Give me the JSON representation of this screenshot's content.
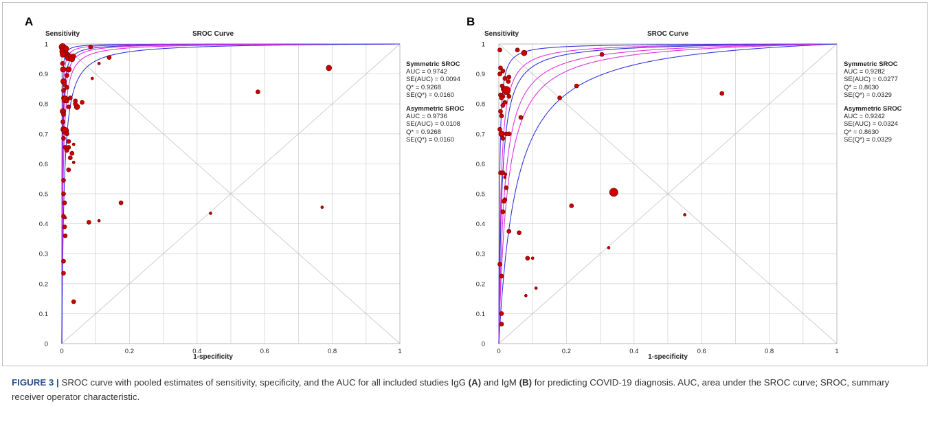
{
  "caption": {
    "label": "FIGURE 3 |",
    "part1": " SROC curve with pooled estimates of sensitivity, specificity, and the AUC for all included studies IgG ",
    "bold_a": "(A)",
    "part2": " and IgM ",
    "bold_b": "(B)",
    "part3": " for predicting COVID-19 diagnosis. AUC, area under the SROC curve; SROC, summary receiver operator characteristic."
  },
  "colors": {
    "points": "#cc0000",
    "point_edge": "#6b0000",
    "sroc_blue": "#3333dd",
    "sroc_magenta": "#dd33dd",
    "grid": "#d3d3d3"
  },
  "chart_data": [
    {
      "panel": "A",
      "type": "scatter",
      "title": "SROC Curve",
      "ylabel": "Sensitivity",
      "xlabel": "1-specificity",
      "xlim": [
        0,
        1
      ],
      "ylim": [
        0,
        1
      ],
      "x_ticks": [
        "0",
        "0.2",
        "0.4",
        "0.6",
        "0.8",
        "1"
      ],
      "y_ticks": [
        "0",
        "0.1",
        "0.2",
        "0.3",
        "0.4",
        "0.5",
        "0.6",
        "0.7",
        "0.8",
        "0.9",
        "1"
      ],
      "grid": true,
      "stats": {
        "symmetric": {
          "title": "Symmetric SROC",
          "lines": [
            "AUC = 0.9742",
            "SE(AUC) = 0.0094",
            "Q* = 0.9268",
            "SE(Q*) = 0.0160"
          ]
        },
        "asymmetric": {
          "title": "Asymmetric SROC",
          "lines": [
            "AUC = 0.9736",
            "SE(AUC) = 0.0108",
            "Q* = 0.9268",
            "SE(Q*) = 0.0160"
          ]
        }
      },
      "curves": [
        {
          "color": "blue",
          "dor": 2500
        },
        {
          "color": "magenta",
          "dor": 1300
        },
        {
          "color": "blue",
          "dor": 700
        },
        {
          "color": "magenta",
          "dor": 500
        },
        {
          "color": "magenta",
          "dor": 300
        },
        {
          "color": "blue",
          "dor": 150
        }
      ],
      "points": [
        {
          "x": 0.002,
          "y": 0.99,
          "s": 5
        },
        {
          "x": 0.004,
          "y": 0.985,
          "s": 4
        },
        {
          "x": 0.006,
          "y": 0.975,
          "s": 6
        },
        {
          "x": 0.003,
          "y": 0.965,
          "s": 4
        },
        {
          "x": 0.012,
          "y": 0.985,
          "s": 4
        },
        {
          "x": 0.018,
          "y": 0.965,
          "s": 3
        },
        {
          "x": 0.02,
          "y": 0.955,
          "s": 5
        },
        {
          "x": 0.025,
          "y": 0.96,
          "s": 3
        },
        {
          "x": 0.03,
          "y": 0.95,
          "s": 4
        },
        {
          "x": 0.035,
          "y": 0.96,
          "s": 3
        },
        {
          "x": 0.085,
          "y": 0.99,
          "s": 3
        },
        {
          "x": 0.14,
          "y": 0.955,
          "s": 3
        },
        {
          "x": 0.002,
          "y": 0.935,
          "s": 3
        },
        {
          "x": 0.004,
          "y": 0.915,
          "s": 4
        },
        {
          "x": 0.02,
          "y": 0.915,
          "s": 4
        },
        {
          "x": 0.015,
          "y": 0.895,
          "s": 3
        },
        {
          "x": 0.11,
          "y": 0.935,
          "s": 2
        },
        {
          "x": 0.005,
          "y": 0.875,
          "s": 4
        },
        {
          "x": 0.008,
          "y": 0.865,
          "s": 3
        },
        {
          "x": 0.015,
          "y": 0.855,
          "s": 3
        },
        {
          "x": 0.09,
          "y": 0.885,
          "s": 2
        },
        {
          "x": 0.005,
          "y": 0.845,
          "s": 3
        },
        {
          "x": 0.005,
          "y": 0.82,
          "s": 3
        },
        {
          "x": 0.01,
          "y": 0.815,
          "s": 5
        },
        {
          "x": 0.015,
          "y": 0.81,
          "s": 3
        },
        {
          "x": 0.025,
          "y": 0.82,
          "s": 3
        },
        {
          "x": 0.02,
          "y": 0.79,
          "s": 3
        },
        {
          "x": 0.04,
          "y": 0.81,
          "s": 3
        },
        {
          "x": 0.045,
          "y": 0.79,
          "s": 4
        },
        {
          "x": 0.04,
          "y": 0.8,
          "s": 3
        },
        {
          "x": 0.06,
          "y": 0.805,
          "s": 3
        },
        {
          "x": 0.003,
          "y": 0.775,
          "s": 4
        },
        {
          "x": 0.005,
          "y": 0.765,
          "s": 3
        },
        {
          "x": 0.003,
          "y": 0.74,
          "s": 3
        },
        {
          "x": 0.005,
          "y": 0.715,
          "s": 4
        },
        {
          "x": 0.01,
          "y": 0.71,
          "s": 5
        },
        {
          "x": 0.015,
          "y": 0.7,
          "s": 3
        },
        {
          "x": 0.005,
          "y": 0.685,
          "s": 3
        },
        {
          "x": 0.02,
          "y": 0.675,
          "s": 3
        },
        {
          "x": 0.035,
          "y": 0.665,
          "s": 2
        },
        {
          "x": 0.01,
          "y": 0.655,
          "s": 3
        },
        {
          "x": 0.02,
          "y": 0.655,
          "s": 3
        },
        {
          "x": 0.015,
          "y": 0.645,
          "s": 3
        },
        {
          "x": 0.03,
          "y": 0.635,
          "s": 3
        },
        {
          "x": 0.025,
          "y": 0.62,
          "s": 3
        },
        {
          "x": 0.035,
          "y": 0.605,
          "s": 2
        },
        {
          "x": 0.02,
          "y": 0.58,
          "s": 3
        },
        {
          "x": 0.005,
          "y": 0.545,
          "s": 3
        },
        {
          "x": 0.005,
          "y": 0.5,
          "s": 3
        },
        {
          "x": 0.008,
          "y": 0.47,
          "s": 3
        },
        {
          "x": 0.175,
          "y": 0.47,
          "s": 3
        },
        {
          "x": 0.005,
          "y": 0.425,
          "s": 3
        },
        {
          "x": 0.01,
          "y": 0.42,
          "s": 2
        },
        {
          "x": 0.08,
          "y": 0.405,
          "s": 3
        },
        {
          "x": 0.11,
          "y": 0.41,
          "s": 2
        },
        {
          "x": 0.008,
          "y": 0.39,
          "s": 3
        },
        {
          "x": 0.01,
          "y": 0.36,
          "s": 3
        },
        {
          "x": 0.005,
          "y": 0.275,
          "s": 3
        },
        {
          "x": 0.005,
          "y": 0.235,
          "s": 3
        },
        {
          "x": 0.035,
          "y": 0.14,
          "s": 3
        },
        {
          "x": 0.44,
          "y": 0.435,
          "s": 2
        },
        {
          "x": 0.58,
          "y": 0.84,
          "s": 3
        },
        {
          "x": 0.77,
          "y": 0.455,
          "s": 2
        },
        {
          "x": 0.79,
          "y": 0.92,
          "s": 4
        }
      ]
    },
    {
      "panel": "B",
      "type": "scatter",
      "title": "SROC Curve",
      "ylabel": "Sensitivity",
      "xlabel": "1-specificity",
      "xlim": [
        0,
        1
      ],
      "ylim": [
        0,
        1
      ],
      "x_ticks": [
        "0",
        "0.2",
        "0.4",
        "0.6",
        "0.8",
        "1"
      ],
      "y_ticks": [
        "0",
        "0.1",
        "0.2",
        "0.3",
        "0.4",
        "0.5",
        "0.6",
        "0.7",
        "0.8",
        "0.9",
        "1"
      ],
      "grid": true,
      "stats": {
        "symmetric": {
          "title": "Symmetric SROC",
          "lines": [
            "AUC = 0.9282",
            "SE(AUC) = 0.0277",
            "Q* = 0.8630",
            "SE(Q*) = 0.0329"
          ]
        },
        "asymmetric": {
          "title": "Asymmetric SROC",
          "lines": [
            "AUC = 0.9242",
            "SE(AUC) = 0.0324",
            "Q* = 0.8630",
            "SE(Q*) = 0.0329"
          ]
        }
      },
      "curves": [
        {
          "color": "blue",
          "dor": 450
        },
        {
          "color": "magenta",
          "dor": 160
        },
        {
          "color": "blue",
          "dor": 110
        },
        {
          "color": "magenta",
          "dor": 60
        },
        {
          "color": "magenta",
          "dor": 40
        },
        {
          "color": "blue",
          "dor": 20
        }
      ],
      "points": [
        {
          "x": 0.003,
          "y": 0.98,
          "s": 3
        },
        {
          "x": 0.055,
          "y": 0.98,
          "s": 3
        },
        {
          "x": 0.075,
          "y": 0.97,
          "s": 4
        },
        {
          "x": 0.005,
          "y": 0.92,
          "s": 3
        },
        {
          "x": 0.003,
          "y": 0.9,
          "s": 3
        },
        {
          "x": 0.012,
          "y": 0.91,
          "s": 3
        },
        {
          "x": 0.018,
          "y": 0.885,
          "s": 3
        },
        {
          "x": 0.03,
          "y": 0.89,
          "s": 3
        },
        {
          "x": 0.028,
          "y": 0.875,
          "s": 3
        },
        {
          "x": 0.01,
          "y": 0.86,
          "s": 3
        },
        {
          "x": 0.015,
          "y": 0.85,
          "s": 4
        },
        {
          "x": 0.022,
          "y": 0.845,
          "s": 6
        },
        {
          "x": 0.005,
          "y": 0.83,
          "s": 3
        },
        {
          "x": 0.012,
          "y": 0.825,
          "s": 3
        },
        {
          "x": 0.008,
          "y": 0.82,
          "s": 3
        },
        {
          "x": 0.03,
          "y": 0.825,
          "s": 3
        },
        {
          "x": 0.018,
          "y": 0.805,
          "s": 3
        },
        {
          "x": 0.012,
          "y": 0.795,
          "s": 3
        },
        {
          "x": 0.005,
          "y": 0.775,
          "s": 3
        },
        {
          "x": 0.008,
          "y": 0.76,
          "s": 3
        },
        {
          "x": 0.065,
          "y": 0.755,
          "s": 3
        },
        {
          "x": 0.003,
          "y": 0.715,
          "s": 3
        },
        {
          "x": 0.008,
          "y": 0.7,
          "s": 4
        },
        {
          "x": 0.03,
          "y": 0.7,
          "s": 3
        },
        {
          "x": 0.022,
          "y": 0.7,
          "s": 3
        },
        {
          "x": 0.012,
          "y": 0.685,
          "s": 3
        },
        {
          "x": 0.005,
          "y": 0.57,
          "s": 3
        },
        {
          "x": 0.012,
          "y": 0.57,
          "s": 3
        },
        {
          "x": 0.02,
          "y": 0.565,
          "s": 2
        },
        {
          "x": 0.018,
          "y": 0.555,
          "s": 2
        },
        {
          "x": 0.022,
          "y": 0.52,
          "s": 3
        },
        {
          "x": 0.018,
          "y": 0.48,
          "s": 3
        },
        {
          "x": 0.015,
          "y": 0.475,
          "s": 3
        },
        {
          "x": 0.012,
          "y": 0.44,
          "s": 3
        },
        {
          "x": 0.03,
          "y": 0.375,
          "s": 3
        },
        {
          "x": 0.06,
          "y": 0.37,
          "s": 3
        },
        {
          "x": 0.085,
          "y": 0.285,
          "s": 3
        },
        {
          "x": 0.1,
          "y": 0.285,
          "s": 2
        },
        {
          "x": 0.003,
          "y": 0.265,
          "s": 3
        },
        {
          "x": 0.008,
          "y": 0.225,
          "s": 3
        },
        {
          "x": 0.11,
          "y": 0.185,
          "s": 2
        },
        {
          "x": 0.08,
          "y": 0.16,
          "s": 2
        },
        {
          "x": 0.008,
          "y": 0.1,
          "s": 3
        },
        {
          "x": 0.008,
          "y": 0.065,
          "s": 3
        },
        {
          "x": 0.23,
          "y": 0.86,
          "s": 3
        },
        {
          "x": 0.18,
          "y": 0.82,
          "s": 3
        },
        {
          "x": 0.305,
          "y": 0.965,
          "s": 3
        },
        {
          "x": 0.215,
          "y": 0.46,
          "s": 3
        },
        {
          "x": 0.34,
          "y": 0.505,
          "s": 6
        },
        {
          "x": 0.325,
          "y": 0.32,
          "s": 2
        },
        {
          "x": 0.55,
          "y": 0.43,
          "s": 2
        },
        {
          "x": 0.66,
          "y": 0.835,
          "s": 3
        }
      ]
    }
  ]
}
